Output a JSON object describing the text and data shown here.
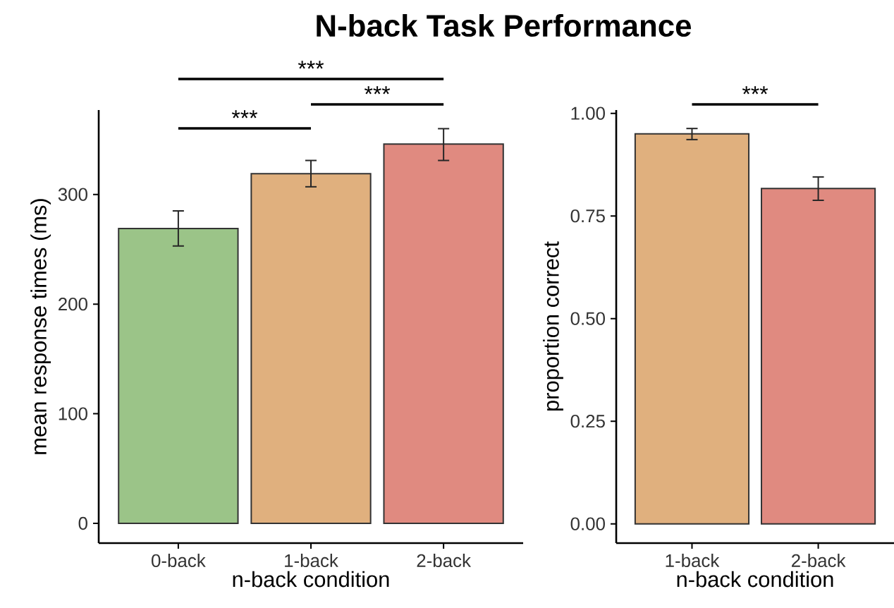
{
  "chart_data": [
    {
      "type": "bar",
      "title": "N-back Task Performance",
      "categories": [
        "0-back",
        "1-back",
        "2-back"
      ],
      "values": [
        269,
        319,
        346
      ],
      "colors": [
        "#9bc488",
        "#e0b07e",
        "#e08a80"
      ],
      "errors": [
        [
          253,
          285
        ],
        [
          307,
          331
        ],
        [
          331,
          360
        ]
      ],
      "ylim": [
        -18,
        377
      ],
      "yticks": [
        0,
        100,
        200,
        300
      ],
      "xlabel": "n-back condition",
      "ylabel": "mean response times (ms)",
      "annotations": [
        "***",
        "***",
        "***"
      ]
    },
    {
      "type": "bar",
      "categories": [
        "1-back",
        "2-back"
      ],
      "values": [
        0.95,
        0.817
      ],
      "colors": [
        "#e0b07e",
        "#e08a80"
      ],
      "errors": [
        [
          0.936,
          0.963
        ],
        [
          0.788,
          0.845
        ]
      ],
      "ylim": [
        -0.047,
        1.008
      ],
      "yticks": [
        {
          "value": 0,
          "label": "0.00"
        },
        {
          "value": 0.25,
          "label": "0.25"
        },
        {
          "value": 0.5,
          "label": "0.50"
        },
        {
          "value": 0.75,
          "label": "0.75"
        },
        {
          "value": 1,
          "label": "1.00"
        }
      ],
      "xlabel": "n-back condition",
      "ylabel": "proportion correct",
      "annotations": [
        "***"
      ]
    }
  ]
}
